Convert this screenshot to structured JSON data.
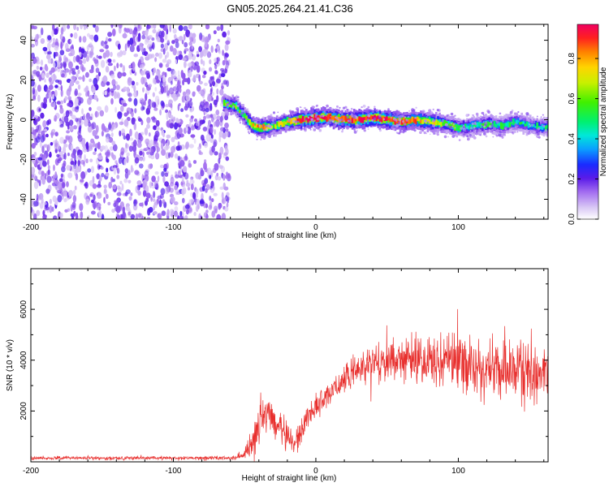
{
  "title": "GN05.2025.264.21.41.C36",
  "chart_data": [
    {
      "type": "heatmap",
      "name": "spectrogram",
      "xlabel": "Height of straight line (km)",
      "ylabel": "Frequency (Hz)",
      "xlim": [
        -200,
        163
      ],
      "ylim": [
        -50,
        48
      ],
      "xticks": [
        -200,
        -100,
        0,
        100
      ],
      "yticks": [
        -40,
        -20,
        0,
        20,
        40
      ],
      "colorbar": {
        "label": "Normalized spectral amplitude",
        "range": [
          0,
          0.97
        ],
        "ticks": [
          0.0,
          0.2,
          0.4,
          0.6,
          0.8
        ],
        "tick_labels": [
          "0.0",
          "0.2",
          "0.4",
          "0.6",
          "0.8"
        ]
      },
      "noise_region_x": [
        -200,
        -63
      ],
      "ridge": {
        "x": [
          -65,
          -57,
          -50,
          -45,
          -40,
          -30,
          -20,
          -10,
          0,
          10,
          20,
          30,
          40,
          50,
          60,
          70,
          80,
          90,
          100,
          110,
          120,
          130,
          140,
          150,
          163
        ],
        "freq": [
          8,
          7,
          1,
          -3,
          -4,
          -3,
          -1,
          0,
          1,
          1,
          0,
          0,
          1,
          0,
          -1,
          0,
          -1,
          -2,
          -4,
          -3,
          -2,
          -3,
          -1,
          -3,
          -4
        ],
        "amplitude": [
          0.55,
          0.6,
          0.5,
          0.75,
          0.8,
          0.6,
          0.75,
          0.9,
          0.95,
          0.9,
          0.85,
          0.9,
          0.95,
          0.9,
          0.85,
          0.8,
          0.7,
          0.6,
          0.5,
          0.45,
          0.5,
          0.45,
          0.45,
          0.4,
          0.4
        ]
      }
    },
    {
      "type": "line",
      "name": "snr",
      "xlabel": "Height of straight line (km)",
      "ylabel": "SNR (10 * v/v)",
      "xlim": [
        -200,
        163
      ],
      "ylim": [
        0,
        7600
      ],
      "xticks": [
        -200,
        -100,
        0,
        100
      ],
      "yticks": [
        2000,
        4000,
        6000
      ],
      "color": "#e8302e",
      "envelope": {
        "x": [
          -200,
          -60,
          -50,
          -45,
          -40,
          -35,
          -30,
          -25,
          -20,
          -15,
          -10,
          -5,
          0,
          10,
          20,
          30,
          40,
          60,
          80,
          100,
          120,
          140,
          163
        ],
        "mean": [
          150,
          150,
          250,
          900,
          1500,
          1700,
          1600,
          1300,
          900,
          700,
          1300,
          1900,
          2200,
          2700,
          3200,
          3700,
          3950,
          4050,
          4000,
          3950,
          3700,
          3550,
          3450
        ],
        "spread": [
          100,
          100,
          300,
          1100,
          1500,
          1400,
          1200,
          1000,
          800,
          600,
          700,
          700,
          650,
          750,
          800,
          900,
          1100,
          1300,
          1500,
          1700,
          1800,
          1900,
          1900
        ]
      }
    }
  ]
}
